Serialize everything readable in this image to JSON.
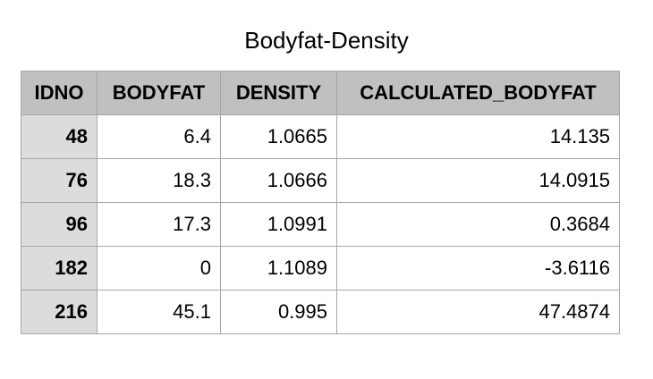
{
  "chart_data": {
    "type": "table",
    "title": "Bodyfat-Density",
    "columns": [
      "IDNO",
      "BODYFAT",
      "DENSITY",
      "CALCULATED_BODYFAT"
    ],
    "rows": [
      [
        "48",
        "6.4",
        "1.0665",
        "14.135"
      ],
      [
        "76",
        "18.3",
        "1.0666",
        "14.0915"
      ],
      [
        "96",
        "17.3",
        "1.0991",
        "0.3684"
      ],
      [
        "182",
        "0",
        "1.1089",
        "-3.6116"
      ],
      [
        "216",
        "45.1",
        "0.995",
        "47.4874"
      ]
    ]
  },
  "colors": {
    "header_bg": "#c0c0c0",
    "id_column_bg": "#dcdcdc",
    "border": "#a6a6a6"
  }
}
